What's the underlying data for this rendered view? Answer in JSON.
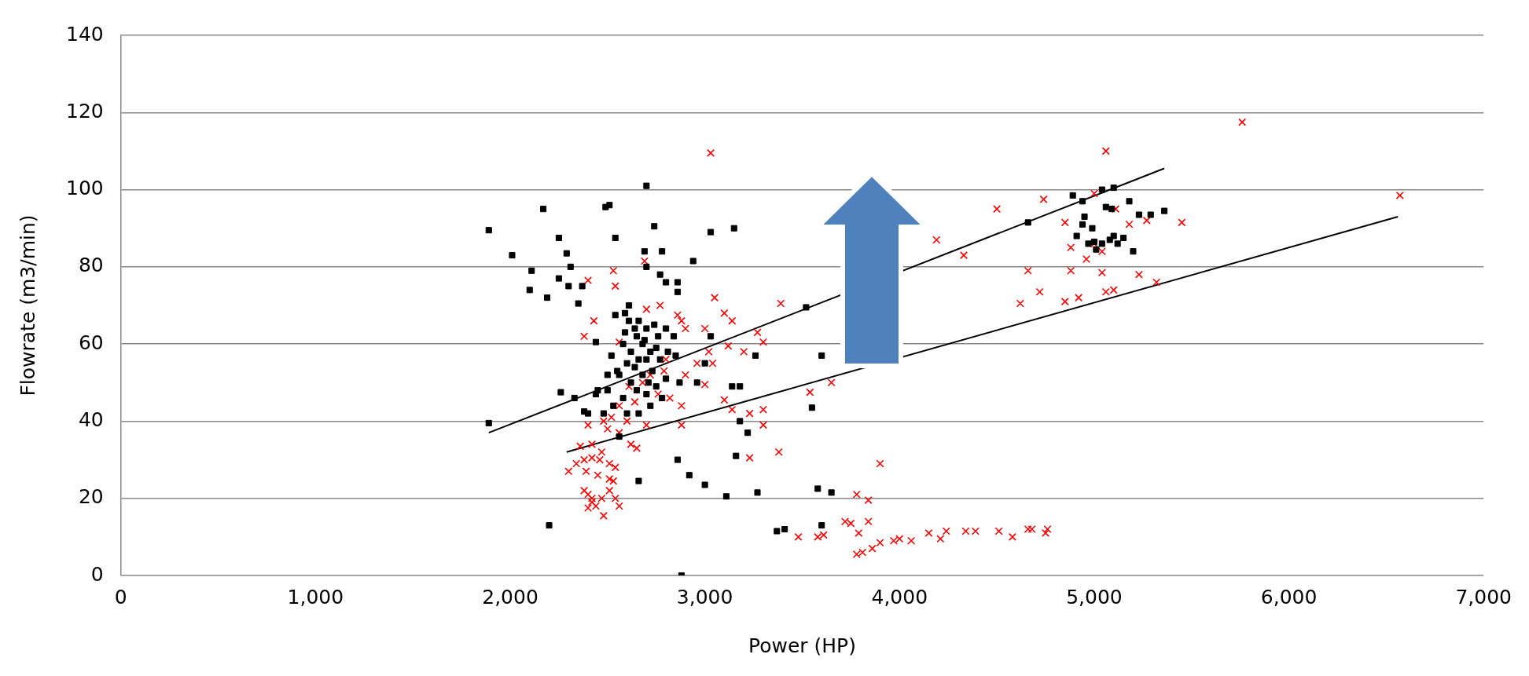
{
  "chart_data": {
    "type": "scatter",
    "xlabel": "Power (HP)",
    "ylabel": "Flowrate (m3/min)",
    "xlim": [
      0,
      7000
    ],
    "xticks": [
      0,
      {
        "value": 1000,
        "label": "1,000"
      },
      {
        "value": 2000,
        "label": "2,000"
      },
      {
        "value": 3000,
        "label": "3,000"
      },
      {
        "value": 4000,
        "label": "4,000"
      },
      {
        "value": 5000,
        "label": "5,000"
      },
      {
        "value": 6000,
        "label": "6,000"
      },
      {
        "value": 7000,
        "label": "7,000"
      }
    ],
    "ylim": [
      0,
      140
    ],
    "yticks": [
      0,
      20,
      40,
      60,
      80,
      100,
      120,
      140
    ],
    "grid": "y",
    "legend": false,
    "series": [
      {
        "color": "#000000",
        "marker": "square",
        "x": [
          1890,
          2010,
          2110,
          2100,
          2170,
          2190,
          2250,
          2250,
          2290,
          2300,
          2310,
          2350,
          2370,
          2440,
          2490,
          2510,
          2540,
          2540,
          2590,
          2610,
          2640,
          2700,
          2690,
          2700,
          2740,
          2780,
          2770,
          2800,
          2860,
          2860,
          2940,
          3030,
          3150,
          2650,
          2680,
          2720,
          2700,
          2600,
          2550,
          2500,
          2620,
          2650,
          2700,
          2750,
          2800,
          2580,
          2530,
          2480,
          2600,
          2660,
          2720,
          2780,
          2620,
          2580,
          2760,
          2800,
          2840,
          2660,
          2700,
          2740,
          2520,
          2560,
          2640,
          2680,
          2730,
          2770,
          2810,
          2850,
          2590,
          2500,
          2450,
          2400,
          2440,
          1890,
          2260,
          2330,
          2380,
          2560,
          2660,
          2200,
          2860,
          2920,
          3000,
          3110,
          3270,
          3370,
          3410,
          3580,
          3600,
          3650,
          2880,
          2870,
          2960,
          3000,
          3030,
          3140,
          3180,
          3220,
          3260,
          3160,
          3520,
          3600,
          3550,
          3180,
          4660,
          4890,
          4940,
          5040,
          5100,
          5180,
          4910,
          4940,
          4950,
          4970,
          5010,
          4990,
          5060,
          5090,
          5000,
          5100,
          5120,
          5150,
          5230,
          5290,
          5360,
          5200,
          5040,
          5080,
          2750,
          2690,
          2610,
          2660,
          2710
        ],
        "values": [
          89.5,
          83,
          79,
          74,
          95,
          72,
          87.5,
          77,
          83.5,
          75,
          80,
          70.5,
          75,
          60.5,
          95.5,
          96,
          87.5,
          67.5,
          68,
          70,
          64,
          101,
          84,
          80,
          90.5,
          84,
          78,
          76,
          76,
          73.5,
          81.5,
          89,
          90,
          62,
          60,
          58,
          56,
          55,
          53,
          52,
          50,
          48,
          47,
          49,
          51,
          46,
          44,
          42,
          42,
          42,
          44,
          46,
          58,
          60,
          62,
          64,
          62,
          66,
          64,
          65,
          57,
          52,
          54,
          52,
          53,
          56,
          58,
          57,
          63,
          48,
          48,
          42,
          47,
          39.5,
          47.5,
          46,
          42.5,
          36,
          24.5,
          13,
          30,
          26,
          23.5,
          20.5,
          21.5,
          11.5,
          12,
          22.5,
          13,
          21.5,
          0,
          50,
          50,
          55,
          62,
          49,
          40,
          37,
          57,
          31,
          69.5,
          57,
          43.5,
          49,
          91.5,
          98.5,
          97,
          100,
          100.5,
          97,
          88,
          91,
          93,
          86,
          84.5,
          90,
          95.5,
          95,
          86.5,
          88,
          86,
          87.5,
          93.5,
          93.5,
          94.5,
          84,
          86,
          87,
          59,
          61,
          66,
          56,
          50
        ]
      },
      {
        "color": "#ff0000",
        "marker": "cross",
        "x": [
          3030,
          5060,
          5760,
          6570,
          4500,
          4740,
          4330,
          4190,
          4660,
          4850,
          4880,
          5000,
          5040,
          4960,
          5000,
          5110,
          4620,
          4720,
          4850,
          4920,
          4880,
          5040,
          5060,
          5100,
          5230,
          5320,
          5450,
          5180,
          5270,
          3390,
          3540,
          3380,
          3650,
          3900,
          3780,
          3840,
          3720,
          3750,
          3840,
          3580,
          3610,
          3480,
          3790,
          3810,
          3860,
          3900,
          3780,
          4000,
          4060,
          3970,
          4150,
          4240,
          4210,
          4340,
          4390,
          4510,
          4580,
          4660,
          4680,
          4750,
          4760,
          2400,
          2530,
          2690,
          2540,
          2380,
          2430,
          2560,
          2700,
          2770,
          2860,
          2900,
          2880,
          3000,
          3050,
          3100,
          3140,
          3120,
          3200,
          3270,
          3300,
          2960,
          3020,
          3040,
          2900,
          2800,
          2790,
          2820,
          2880,
          3000,
          3100,
          3140,
          3230,
          3300,
          3300,
          3230,
          2880,
          2700,
          2620,
          2560,
          2520,
          2480,
          2600,
          2650,
          2400,
          2420,
          2340,
          2360,
          2300,
          2380,
          2420,
          2470,
          2390,
          2450,
          2510,
          2540,
          2380,
          2420,
          2440,
          2400,
          2470,
          2510,
          2540,
          2560,
          2480,
          2400,
          2510,
          2530,
          2460,
          2420,
          2560,
          2610,
          2680,
          2720,
          2760,
          2640,
          2500
        ],
        "values": [
          109.5,
          110,
          117.5,
          98.5,
          95,
          97.5,
          83,
          87,
          79,
          91.5,
          85,
          86,
          84,
          82,
          99,
          95,
          70.5,
          73.5,
          71,
          72,
          79,
          78.5,
          73.5,
          74,
          78,
          76,
          91.5,
          91,
          92,
          70.5,
          47.5,
          32,
          50,
          29,
          21,
          19.5,
          14,
          13.5,
          14,
          10,
          10.5,
          10,
          11,
          6,
          7,
          8.5,
          5.5,
          9.5,
          9,
          9,
          11,
          11.5,
          9.5,
          11.5,
          11.5,
          11.5,
          10,
          12,
          12,
          11,
          12,
          76.5,
          79,
          81.5,
          75,
          62,
          66,
          60.5,
          69,
          70,
          67.5,
          64,
          66,
          64,
          72,
          68,
          66,
          59.5,
          58,
          63,
          60.5,
          55,
          58,
          55,
          52,
          56,
          53,
          46,
          44,
          49.5,
          45.5,
          43,
          42,
          43,
          39,
          30.5,
          39,
          39,
          34,
          37,
          41,
          40,
          40,
          33,
          39,
          34,
          29,
          33.5,
          27,
          30,
          30.5,
          32,
          27,
          26,
          29,
          28,
          22,
          20,
          18,
          17.5,
          20,
          22,
          20,
          18,
          15.5,
          21,
          25,
          24.5,
          30,
          19,
          44,
          49,
          50,
          52,
          47,
          45,
          38
        ]
      },
      {
        "type": "line",
        "color": "#000000",
        "marker": "none",
        "x": [
          1890,
          5360
        ],
        "values": [
          37,
          105.5
        ]
      },
      {
        "type": "line",
        "color": "#000000",
        "marker": "none",
        "x": [
          2290,
          6560
        ],
        "values": [
          32,
          93
        ]
      }
    ]
  }
}
